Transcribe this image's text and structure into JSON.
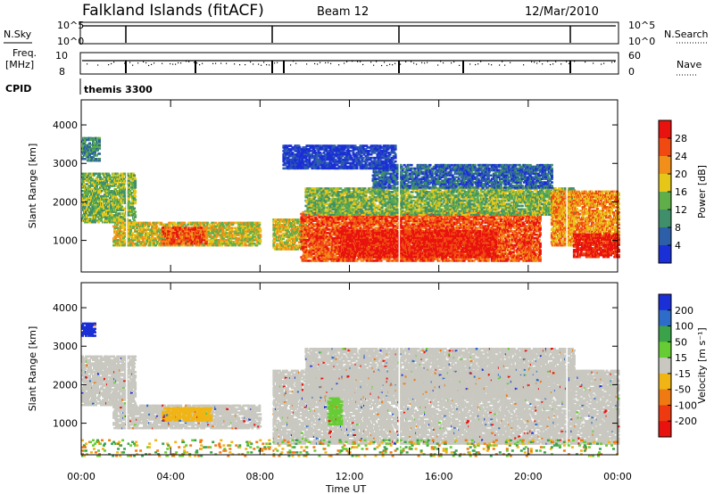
{
  "header": {
    "title": "Falkland Islands (fitACF)",
    "beam": "Beam 12",
    "date": "12/Mar/2010"
  },
  "strips": {
    "nsky_label": "N.Sky",
    "nsky_ticks": [
      "10^5",
      "10^0"
    ],
    "nsearch_label": "N.Search",
    "freq_label_1": "Freq.",
    "freq_label_2": "[MHz]",
    "freq_ticks": [
      "10",
      "8"
    ],
    "nave_ticks": [
      "60",
      "0"
    ],
    "nave_label": "Nave",
    "cpid_label": "CPID",
    "cpid_value": "themis 3300",
    "legend_colors": {
      "nsky": "#000000",
      "nsearch": "#000000"
    }
  },
  "chart_data": [
    {
      "type": "heatmap",
      "name": "power",
      "ylabel": "Slant Range [km]",
      "xlabel": "",
      "x_ticks": [
        "00:00",
        "04:00",
        "08:00",
        "12:00",
        "16:00",
        "20:00",
        "00:00"
      ],
      "x_range_hours": [
        0,
        24
      ],
      "y_ticks": [
        1000,
        2000,
        3000,
        4000
      ],
      "y_range_km": [
        180,
        4650
      ],
      "colorbar": {
        "label": "Power [dB]",
        "ticks": [
          4,
          8,
          12,
          16,
          20,
          24,
          28
        ],
        "colors": [
          "#1a2fd6",
          "#2d5fa8",
          "#3f8f6a",
          "#5fae4a",
          "#e6c619",
          "#f28f1a",
          "#f04a12",
          "#e8120e"
        ]
      },
      "regions": [
        {
          "t0": 0.0,
          "t1": 2.4,
          "r0": 1500,
          "r1": 2800,
          "level": 3
        },
        {
          "t0": 0.0,
          "t1": 0.8,
          "r0": 3100,
          "r1": 3700,
          "level": 2
        },
        {
          "t0": 1.4,
          "t1": 8.0,
          "r0": 900,
          "r1": 1500,
          "level": 4
        },
        {
          "t0": 3.6,
          "t1": 5.6,
          "r0": 950,
          "r1": 1400,
          "level": 6
        },
        {
          "t0": 8.5,
          "t1": 10.0,
          "r0": 800,
          "r1": 1600,
          "level": 4
        },
        {
          "t0": 9.8,
          "t1": 20.5,
          "r0": 500,
          "r1": 1800,
          "level": 6
        },
        {
          "t0": 11.5,
          "t1": 18.5,
          "r0": 600,
          "r1": 1300,
          "level": 7
        },
        {
          "t0": 10.0,
          "t1": 22.0,
          "r0": 1700,
          "r1": 2400,
          "level": 3
        },
        {
          "t0": 13.0,
          "t1": 21.0,
          "r0": 2400,
          "r1": 3000,
          "level": 1
        },
        {
          "t0": 21.0,
          "t1": 24.0,
          "r0": 900,
          "r1": 2300,
          "level": 5
        },
        {
          "t0": 22.0,
          "t1": 24.0,
          "r0": 600,
          "r1": 1200,
          "level": 7
        },
        {
          "t0": 9.0,
          "t1": 14.0,
          "r0": 2900,
          "r1": 3500,
          "level": 0
        }
      ]
    },
    {
      "type": "heatmap",
      "name": "velocity",
      "ylabel": "Slant Range [km]",
      "xlabel": "Time UT",
      "x_ticks": [
        "00:00",
        "04:00",
        "08:00",
        "12:00",
        "16:00",
        "20:00",
        "00:00"
      ],
      "x_range_hours": [
        0,
        24
      ],
      "y_ticks": [
        1000,
        2000,
        3000,
        4000
      ],
      "y_range_km": [
        180,
        4650
      ],
      "colorbar": {
        "label": "Velocity [m s⁻¹]",
        "ticks": [
          200,
          100,
          50,
          15,
          -15,
          -50,
          -100,
          -200
        ],
        "colors": [
          "#1a2fd6",
          "#2d6cc9",
          "#3aa34a",
          "#66cc33",
          "#c8c8c0",
          "#f0b414",
          "#f07a12",
          "#ee3a10",
          "#e8120e"
        ]
      },
      "regions": [
        {
          "t0": 0.0,
          "t1": 2.4,
          "r0": 1500,
          "r1": 2800,
          "level": 4
        },
        {
          "t0": 1.4,
          "t1": 8.0,
          "r0": 900,
          "r1": 1500,
          "level": 4
        },
        {
          "t0": 3.6,
          "t1": 5.8,
          "r0": 1100,
          "r1": 1450,
          "level": 5
        },
        {
          "t0": 0.0,
          "t1": 0.6,
          "r0": 3300,
          "r1": 3650,
          "level": 0
        },
        {
          "t0": 8.5,
          "t1": 24.0,
          "r0": 500,
          "r1": 2400,
          "level": 4
        },
        {
          "t0": 10.0,
          "t1": 22.0,
          "r0": 1700,
          "r1": 3000,
          "level": 4
        },
        {
          "t0": 11.0,
          "t1": 11.6,
          "r0": 1000,
          "r1": 1700,
          "level": 3
        },
        {
          "t0": 0.0,
          "t1": 24.0,
          "r0": 180,
          "r1": 600,
          "level": 6
        }
      ]
    }
  ]
}
